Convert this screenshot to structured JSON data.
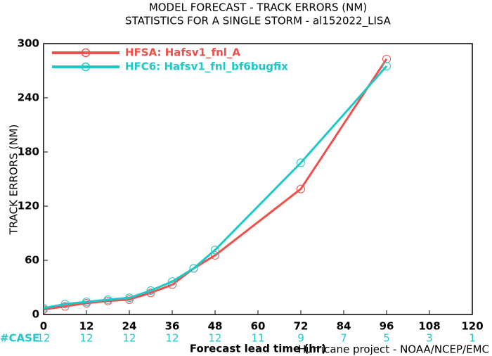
{
  "chart_data": {
    "type": "line",
    "title": "MODEL FORECAST - TRACK ERRORS (NM)",
    "subtitle": "STATISTICS FOR A SINGLE STORM - al152022_LISA",
    "x_label": "Forecast lead time (hr)",
    "y_label": "TRACK ERRORS (NM)",
    "footer": "Hurricane project - NOAA/NCEP/EMC",
    "x": [
      0,
      6,
      12,
      18,
      24,
      30,
      36,
      42,
      48,
      72,
      96
    ],
    "series": [
      {
        "name": "HFSA: Hafsv1_fnl_A",
        "color": "#f0504a",
        "values": [
          5.5,
          9,
          12.5,
          15,
          16.5,
          24,
          33,
          51,
          65.5,
          139,
          283
        ]
      },
      {
        "name": "HFC6: Hafsv1_fnl_bf6bugfix",
        "color": "#1ec8c8",
        "values": [
          7,
          11.5,
          14,
          16.5,
          18.5,
          26.5,
          36.5,
          51,
          71.5,
          168,
          275
        ]
      }
    ],
    "xlim": [
      0,
      120
    ],
    "xticks": [
      0,
      12,
      24,
      36,
      48,
      60,
      72,
      84,
      96,
      108,
      120
    ],
    "ylim": [
      0,
      300
    ],
    "yticks": [
      0,
      60,
      120,
      180,
      240,
      300
    ],
    "case_label": "#CASE",
    "cases": [
      12,
      12,
      12,
      12,
      12,
      11,
      9,
      7,
      5,
      3,
      1
    ],
    "case_color": "#1ec8c8",
    "legend": "upper left"
  }
}
